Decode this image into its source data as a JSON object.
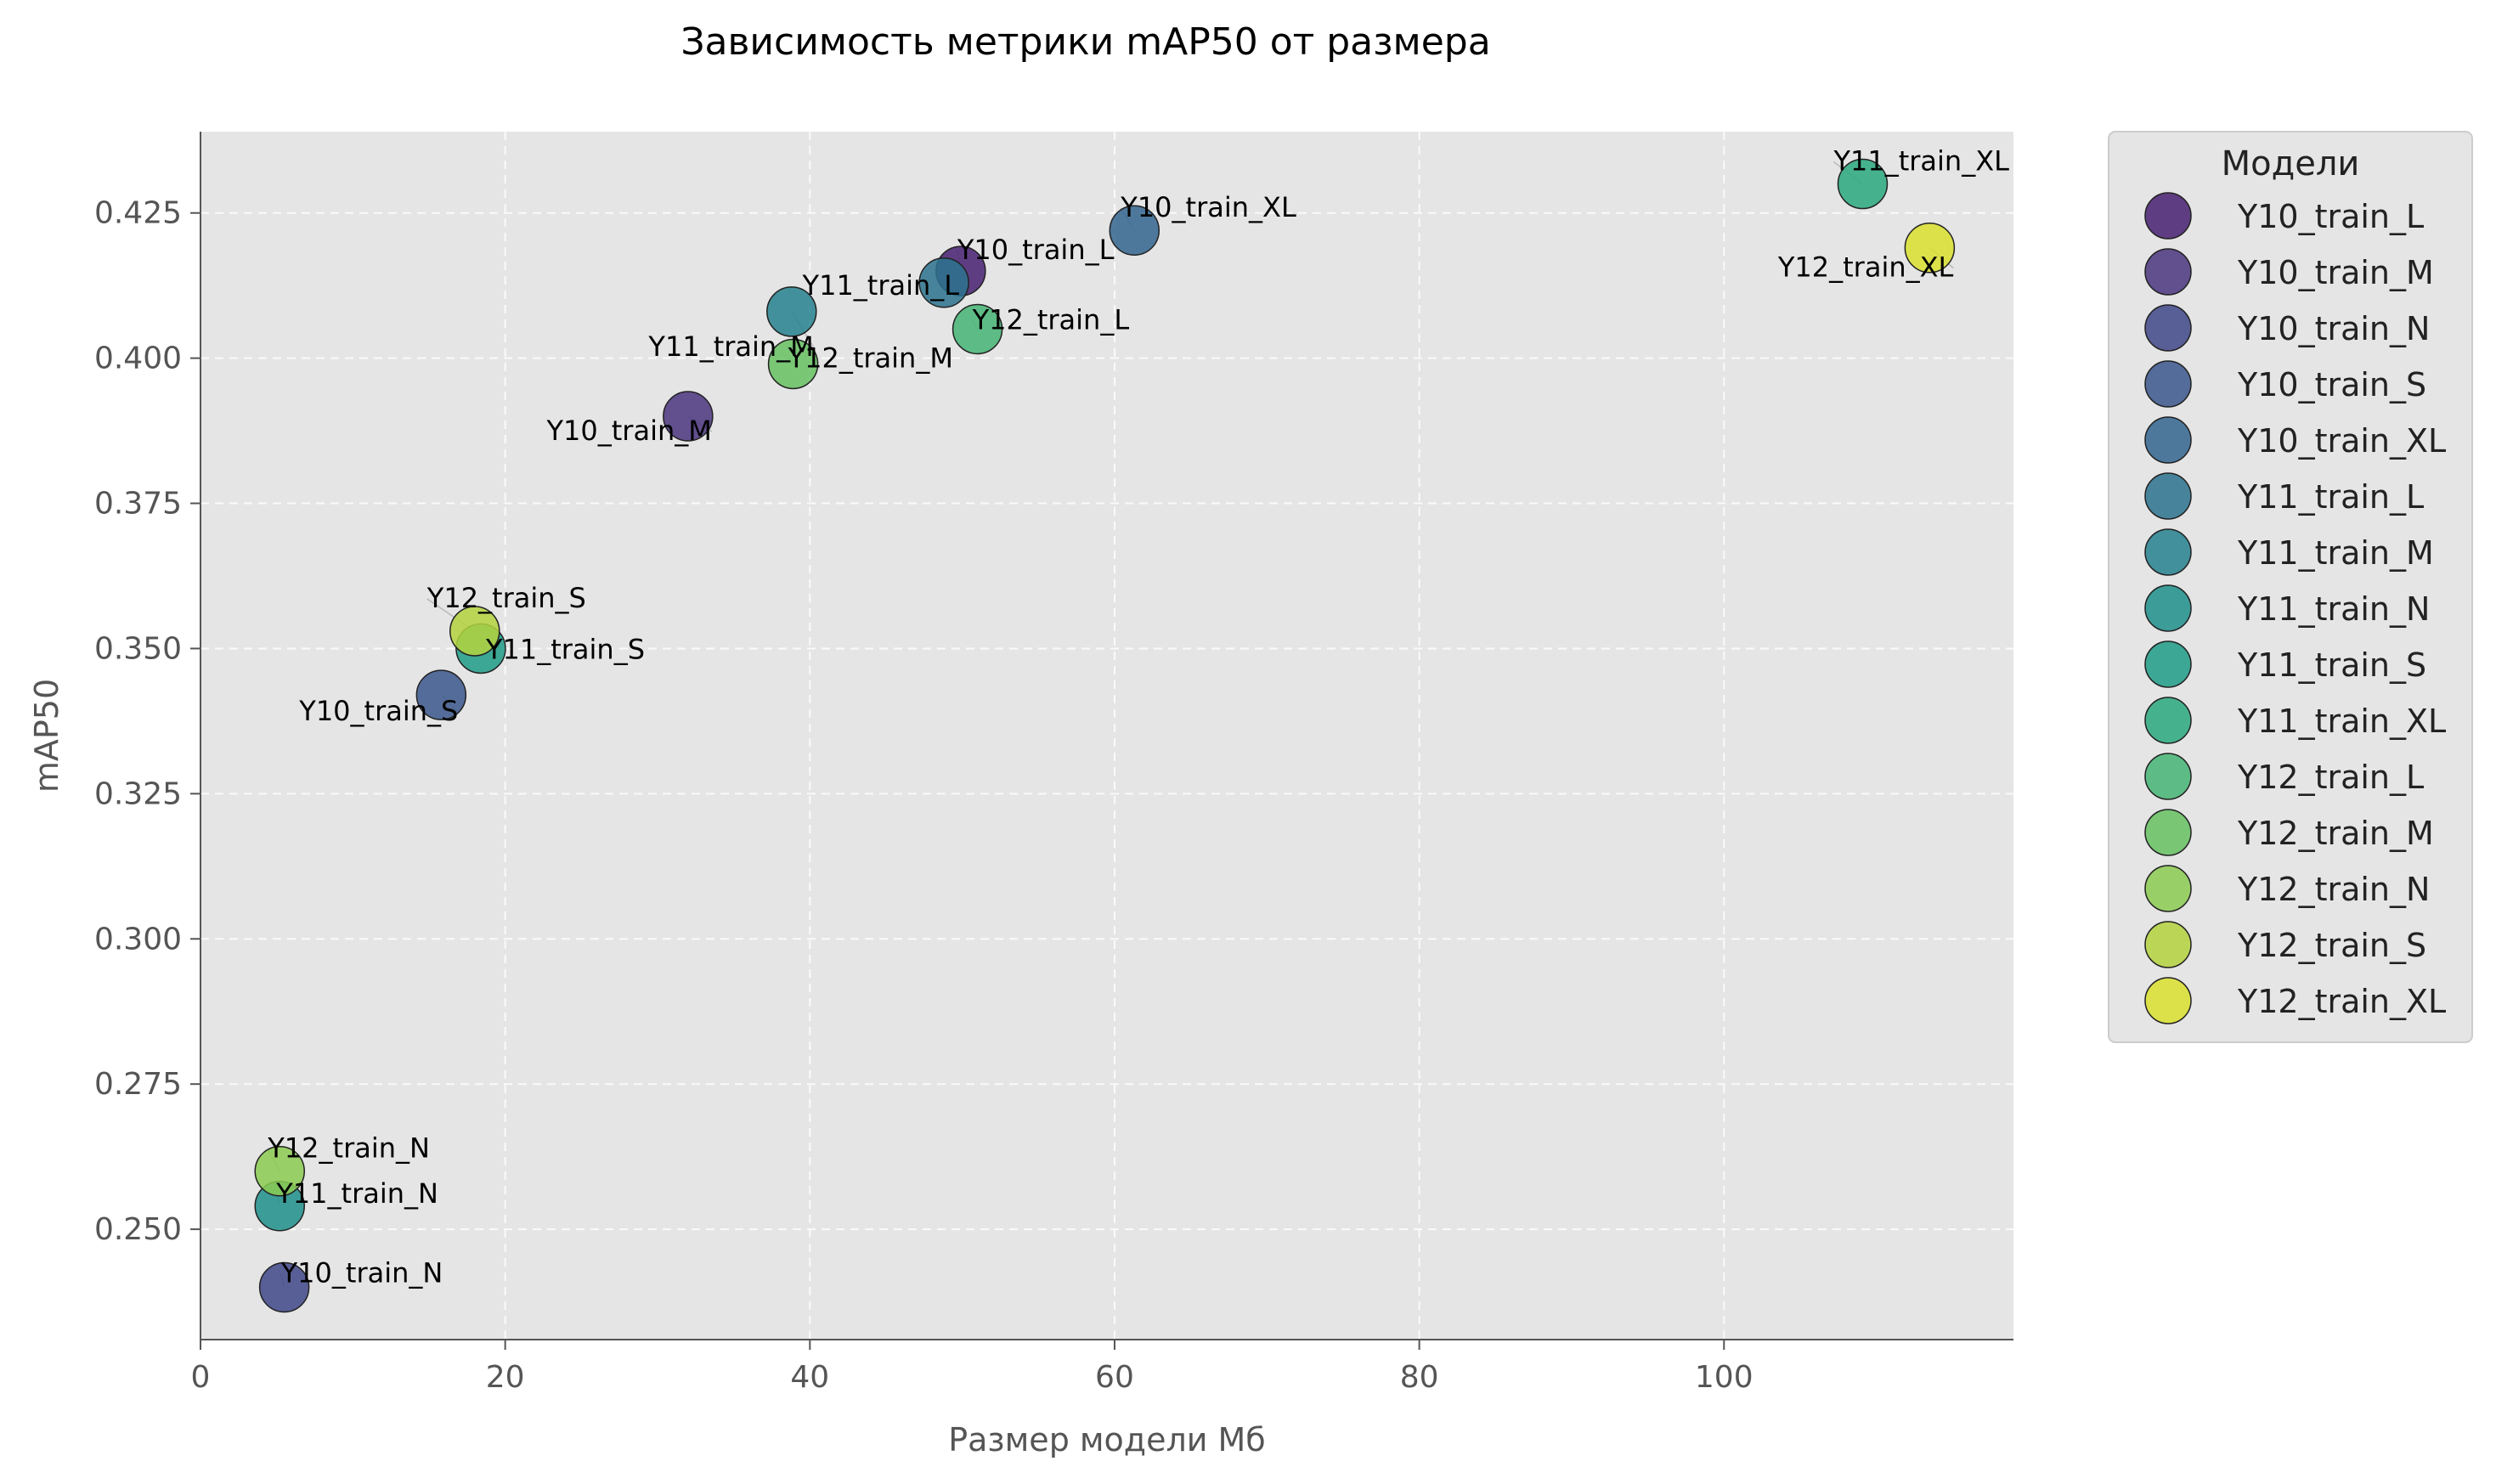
{
  "chart_data": {
    "type": "scatter",
    "title": "Зависимость метрики mAP50 от размера",
    "xlabel": "Размер модели Мб",
    "ylabel": "mAP50",
    "xlim": [
      0,
      119
    ],
    "ylim": [
      0.231,
      0.439
    ],
    "xticks": [
      "0",
      "20",
      "40",
      "60",
      "80",
      "100"
    ],
    "xtick_values": [
      0,
      20,
      40,
      60,
      80,
      100
    ],
    "yticks": [
      "0.250",
      "0.275",
      "0.300",
      "0.325",
      "0.350",
      "0.375",
      "0.400",
      "0.425"
    ],
    "ytick_values": [
      0.25,
      0.275,
      0.3,
      0.325,
      0.35,
      0.375,
      0.4,
      0.425
    ],
    "grid": true,
    "legend_title": "Модели",
    "legend_position": "outside-right",
    "points": [
      {
        "name": "Y10_train_L",
        "x": 49.9,
        "y": 0.415,
        "color": "#482071"
      },
      {
        "name": "Y10_train_M",
        "x": 32.0,
        "y": 0.39,
        "color": "#4a357f"
      },
      {
        "name": "Y10_train_N",
        "x": 5.5,
        "y": 0.24,
        "color": "#3f4788"
      },
      {
        "name": "Y10_train_S",
        "x": 15.8,
        "y": 0.342,
        "color": "#3a578c"
      },
      {
        "name": "Y10_train_XL",
        "x": 61.3,
        "y": 0.422,
        "color": "#32658e"
      },
      {
        "name": "Y11_train_L",
        "x": 48.8,
        "y": 0.413,
        "color": "#2c738e"
      },
      {
        "name": "Y11_train_M",
        "x": 38.8,
        "y": 0.408,
        "color": "#26818e"
      },
      {
        "name": "Y11_train_N",
        "x": 5.2,
        "y": 0.254,
        "color": "#1f8f8b"
      },
      {
        "name": "Y11_train_S",
        "x": 18.4,
        "y": 0.35,
        "color": "#1f9c86"
      },
      {
        "name": "Y11_train_XL",
        "x": 109.1,
        "y": 0.43,
        "color": "#2aa97e"
      },
      {
        "name": "Y12_train_L",
        "x": 51.0,
        "y": 0.405,
        "color": "#45b574"
      },
      {
        "name": "Y12_train_M",
        "x": 38.9,
        "y": 0.399,
        "color": "#66c162"
      },
      {
        "name": "Y12_train_N",
        "x": 5.2,
        "y": 0.26,
        "color": "#8ccb51"
      },
      {
        "name": "Y12_train_S",
        "x": 18.0,
        "y": 0.353,
        "color": "#b4d43e"
      },
      {
        "name": "Y12_train_XL",
        "x": 113.5,
        "y": 0.419,
        "color": "#dae02e"
      }
    ],
    "annotations": [
      {
        "text": "Y10_train_L",
        "anchor": "start",
        "dx": -4,
        "dy": -14
      },
      {
        "text": "Y10_train_M",
        "anchor": "end",
        "dx": 28,
        "dy": 28
      },
      {
        "text": "Y10_train_N",
        "anchor": "start",
        "dx": -4,
        "dy": -6
      },
      {
        "text": "Y10_train_S",
        "anchor": "end",
        "dx": 20,
        "dy": 30
      },
      {
        "text": "Y10_train_XL",
        "anchor": "start",
        "dx": -16,
        "dy": -16
      },
      {
        "text": "Y11_train_L",
        "anchor": "end",
        "dx": 18,
        "dy": 14
      },
      {
        "text": "Y11_train_M",
        "anchor": "end",
        "dx": 26,
        "dy": 52
      },
      {
        "text": "Y11_train_N",
        "anchor": "start",
        "dx": -4,
        "dy": -4
      },
      {
        "text": "Y11_train_S",
        "anchor": "start",
        "dx": 6,
        "dy": 12
      },
      {
        "text": "Y11_train_XL",
        "anchor": "start",
        "dx": -34,
        "dy": -16
      },
      {
        "text": "Y12_train_L",
        "anchor": "start",
        "dx": -6,
        "dy": 0
      },
      {
        "text": "Y12_train_M",
        "anchor": "start",
        "dx": -6,
        "dy": 4
      },
      {
        "text": "Y12_train_N",
        "anchor": "start",
        "dx": -14,
        "dy": -16
      },
      {
        "text": "Y12_train_S",
        "anchor": "start",
        "dx": -56,
        "dy": -28
      },
      {
        "text": "Y12_train_XL",
        "anchor": "end",
        "dx": 28,
        "dy": 34
      }
    ]
  }
}
